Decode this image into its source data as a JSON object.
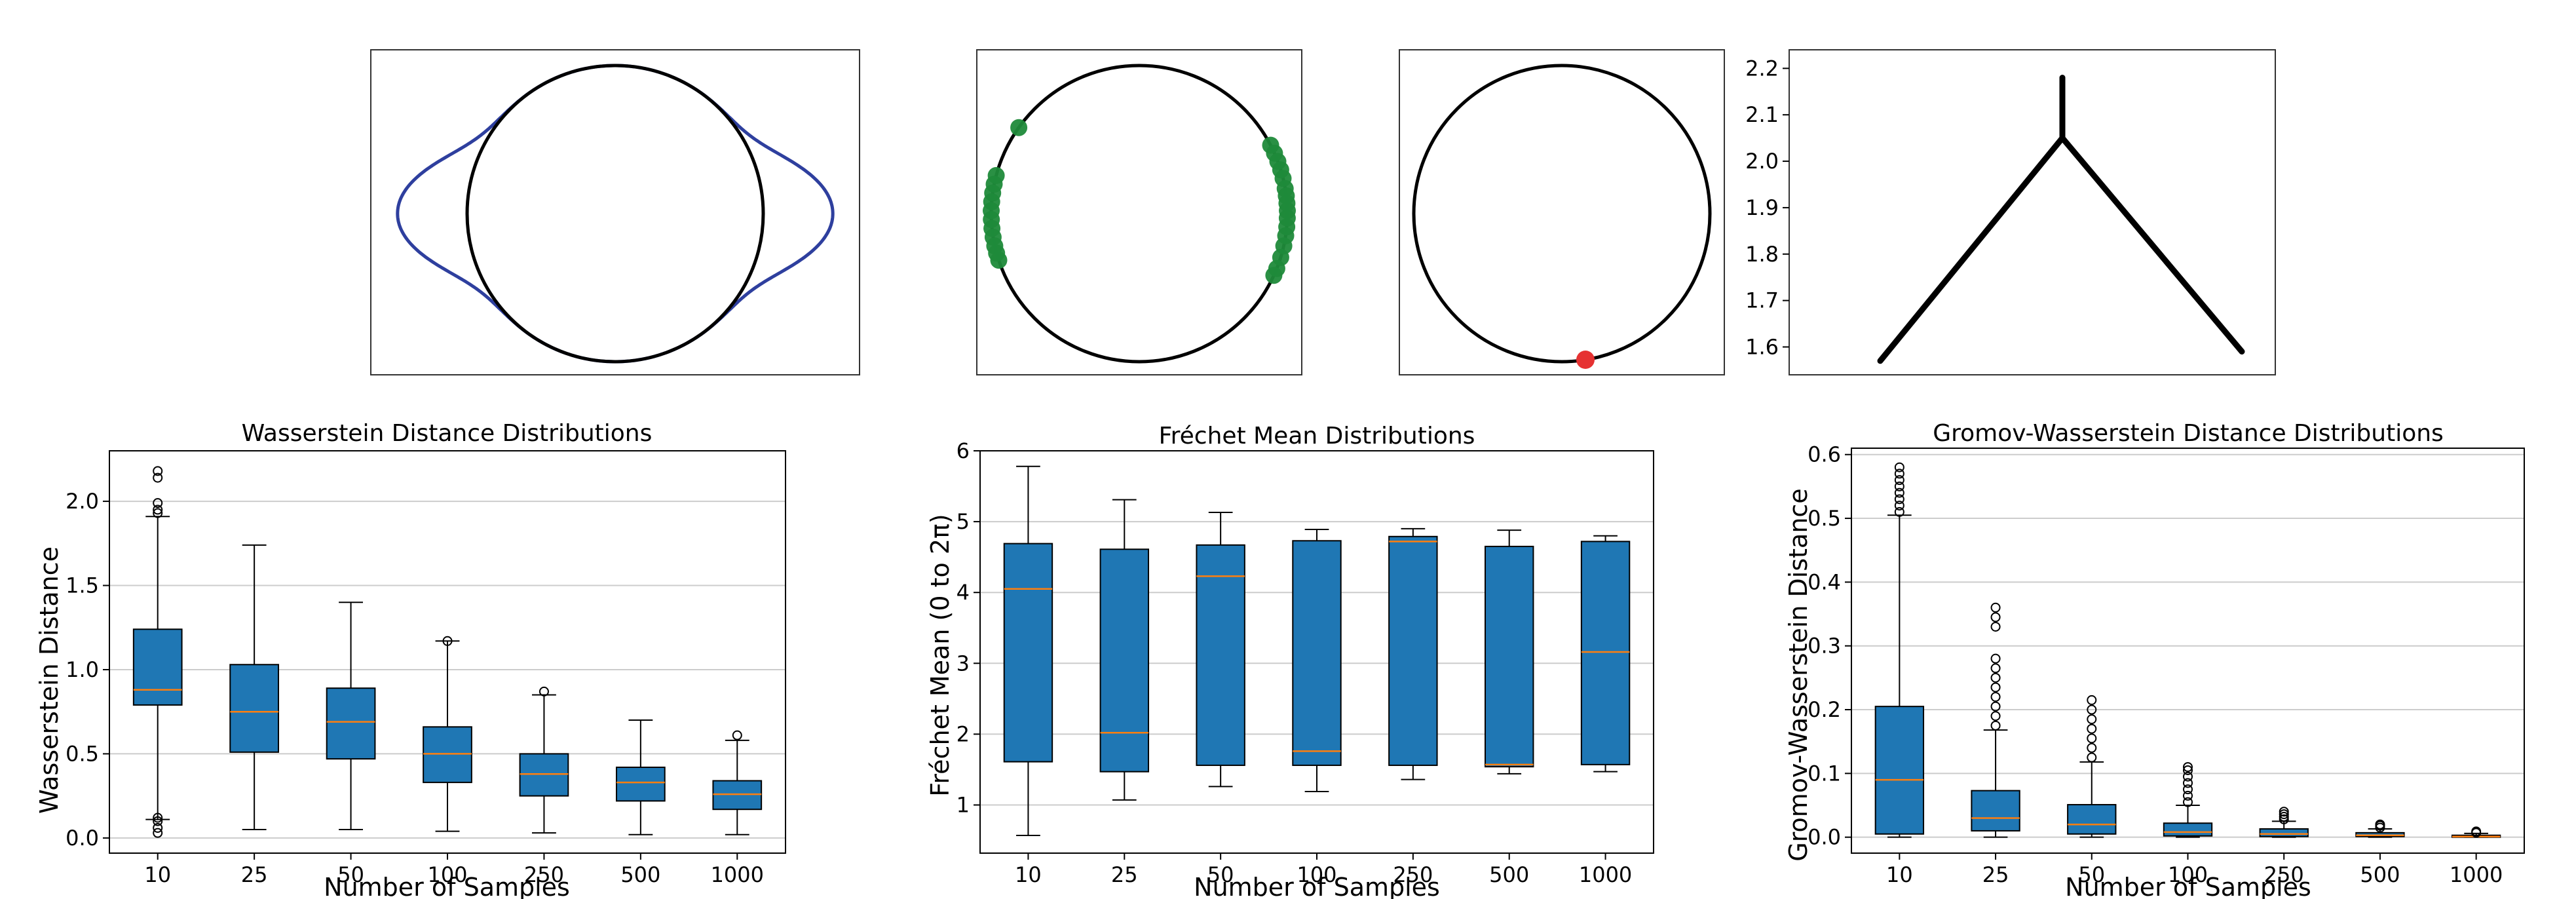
{
  "colors": {
    "box_fill": "#1f77b4",
    "median": "#ff7f0e",
    "grid": "#cccccc",
    "curve_blue": "#2e3f9e",
    "points_green": "#1f8a3a",
    "point_red": "#e63232"
  },
  "top_panels": {
    "panel1": {
      "description_icon": "circle-with-blue-bumps"
    },
    "panel2": {
      "description_icon": "circle-with-green-points"
    },
    "panel3": {
      "description_icon": "circle-with-red-point"
    },
    "panel4": {
      "yticks": [
        "1.6",
        "1.7",
        "1.8",
        "1.9",
        "2.0",
        "2.1",
        "2.2"
      ],
      "yvalues": [
        1.6,
        1.7,
        1.8,
        1.9,
        2.0,
        2.1,
        2.2
      ],
      "ylim": [
        1.54,
        2.24
      ],
      "tree": {
        "junction": 2.05,
        "top": 2.18,
        "left_end": 1.57,
        "right_end": 1.59
      }
    }
  },
  "chart_data": [
    {
      "type": "box",
      "title": "Wasserstein Distance Distributions",
      "xlabel": "Number of Samples",
      "ylabel": "Wasserstein Distance",
      "categories": [
        "10",
        "25",
        "50",
        "100",
        "250",
        "500",
        "1000"
      ],
      "ylim": [
        -0.09,
        2.3
      ],
      "yticks": [
        0.0,
        0.5,
        1.0,
        1.5,
        2.0
      ],
      "ytick_labels": [
        "0.0",
        "0.5",
        "1.0",
        "1.5",
        "2.0"
      ],
      "boxes": [
        {
          "whislo": 0.11,
          "q1": 0.79,
          "med": 0.88,
          "q3": 1.24,
          "whishi": 1.91,
          "fliers": [
            0.03,
            0.06,
            0.1,
            0.12,
            1.93,
            1.95,
            1.99,
            2.14,
            2.18
          ]
        },
        {
          "whislo": 0.05,
          "q1": 0.51,
          "med": 0.75,
          "q3": 1.03,
          "whishi": 1.74,
          "fliers": []
        },
        {
          "whislo": 0.05,
          "q1": 0.47,
          "med": 0.69,
          "q3": 0.89,
          "whishi": 1.4,
          "fliers": []
        },
        {
          "whislo": 0.04,
          "q1": 0.33,
          "med": 0.5,
          "q3": 0.66,
          "whishi": 1.17,
          "fliers": [
            1.17
          ]
        },
        {
          "whislo": 0.03,
          "q1": 0.25,
          "med": 0.38,
          "q3": 0.5,
          "whishi": 0.85,
          "fliers": [
            0.87
          ]
        },
        {
          "whislo": 0.02,
          "q1": 0.22,
          "med": 0.33,
          "q3": 0.42,
          "whishi": 0.7,
          "fliers": []
        },
        {
          "whislo": 0.02,
          "q1": 0.17,
          "med": 0.26,
          "q3": 0.34,
          "whishi": 0.58,
          "fliers": [
            0.61
          ]
        }
      ]
    },
    {
      "type": "box",
      "title": "Fréchet Mean Distributions",
      "xlabel": "Number of Samples",
      "ylabel": "Fréchet Mean (0 to 2π)",
      "categories": [
        "10",
        "25",
        "50",
        "100",
        "250",
        "500",
        "1000"
      ],
      "ylim": [
        0.32,
        6.0
      ],
      "yticks": [
        1,
        2,
        3,
        4,
        5,
        6
      ],
      "ytick_labels": [
        "1",
        "2",
        "3",
        "4",
        "5",
        "6"
      ],
      "boxes": [
        {
          "whislo": 0.57,
          "q1": 1.61,
          "med": 4.05,
          "q3": 4.69,
          "whishi": 5.78,
          "fliers": []
        },
        {
          "whislo": 1.07,
          "q1": 1.47,
          "med": 2.02,
          "q3": 4.61,
          "whishi": 5.31,
          "fliers": []
        },
        {
          "whislo": 1.26,
          "q1": 1.56,
          "med": 4.23,
          "q3": 4.67,
          "whishi": 5.13,
          "fliers": []
        },
        {
          "whislo": 1.19,
          "q1": 1.56,
          "med": 1.76,
          "q3": 4.73,
          "whishi": 4.89,
          "fliers": []
        },
        {
          "whislo": 1.36,
          "q1": 1.56,
          "med": 4.72,
          "q3": 4.79,
          "whishi": 4.9,
          "fliers": []
        },
        {
          "whislo": 1.44,
          "q1": 1.54,
          "med": 1.57,
          "q3": 4.65,
          "whishi": 4.88,
          "fliers": []
        },
        {
          "whislo": 1.47,
          "q1": 1.57,
          "med": 3.16,
          "q3": 4.72,
          "whishi": 4.8,
          "fliers": []
        }
      ]
    },
    {
      "type": "box",
      "title": "Gromov-Wasserstein Distance Distributions",
      "xlabel": "Number of Samples",
      "ylabel": "Gromov-Wasserstein Distance",
      "categories": [
        "10",
        "25",
        "50",
        "100",
        "250",
        "500",
        "1000"
      ],
      "ylim": [
        -0.025,
        0.61
      ],
      "yticks": [
        0.0,
        0.1,
        0.2,
        0.3,
        0.4,
        0.5,
        0.6
      ],
      "ytick_labels": [
        "0.0",
        "0.1",
        "0.2",
        "0.3",
        "0.4",
        "0.5",
        "0.6"
      ],
      "boxes": [
        {
          "whislo": 0.0,
          "q1": 0.005,
          "med": 0.09,
          "q3": 0.205,
          "whishi": 0.505,
          "fliers": [
            0.51,
            0.52,
            0.53,
            0.54,
            0.55,
            0.56,
            0.57,
            0.58
          ]
        },
        {
          "whislo": 0.0,
          "q1": 0.01,
          "med": 0.03,
          "q3": 0.073,
          "whishi": 0.168,
          "fliers": [
            0.175,
            0.19,
            0.205,
            0.22,
            0.235,
            0.25,
            0.265,
            0.28,
            0.33,
            0.345,
            0.36
          ]
        },
        {
          "whislo": 0.0,
          "q1": 0.005,
          "med": 0.02,
          "q3": 0.051,
          "whishi": 0.118,
          "fliers": [
            0.125,
            0.14,
            0.155,
            0.17,
            0.185,
            0.2,
            0.215
          ]
        },
        {
          "whislo": 0.0,
          "q1": 0.002,
          "med": 0.008,
          "q3": 0.022,
          "whishi": 0.05,
          "fliers": [
            0.055,
            0.065,
            0.075,
            0.085,
            0.095,
            0.105,
            0.11
          ]
        },
        {
          "whislo": 0.0,
          "q1": 0.001,
          "med": 0.005,
          "q3": 0.013,
          "whishi": 0.025,
          "fliers": [
            0.028,
            0.032,
            0.036,
            0.04
          ]
        },
        {
          "whislo": 0.0,
          "q1": 0.001,
          "med": 0.003,
          "q3": 0.007,
          "whishi": 0.013,
          "fliers": [
            0.015,
            0.018,
            0.02
          ]
        },
        {
          "whislo": 0.0,
          "q1": 0.0,
          "med": 0.001,
          "q3": 0.003,
          "whishi": 0.006,
          "fliers": [
            0.007,
            0.009
          ]
        }
      ]
    }
  ]
}
